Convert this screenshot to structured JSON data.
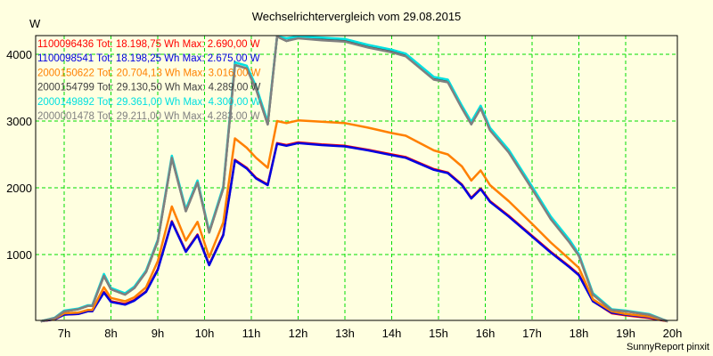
{
  "chart_data": {
    "type": "line",
    "title": "Wechselrichtervergleich vom 29.08.2015",
    "ylabel": "W",
    "xlabel": "",
    "footer": "SunnyReport pinxit",
    "xlim": [
      6.4,
      20.15
    ],
    "ylim": [
      0,
      4280
    ],
    "yticks": [
      1000,
      2000,
      3000,
      4000
    ],
    "xticks": [
      7,
      8,
      9,
      10,
      11,
      12,
      13,
      14,
      15,
      16,
      17,
      18,
      19,
      20
    ],
    "xtick_labels": [
      "7h",
      "8h",
      "9h",
      "10h",
      "11h",
      "12h",
      "13h",
      "14h",
      "15h",
      "16h",
      "17h",
      "18h",
      "19h",
      "20h"
    ],
    "grid": true,
    "grid_color": "#00dd00",
    "background": "#ffffe0",
    "legend_position": "top-left inside",
    "series": [
      {
        "name": "1100096436",
        "legend": "1100096436 Tot: 18.198,75 Wh Max: 2.690,00 W",
        "color": "#ff0000",
        "x": [
          6.5,
          6.8,
          7.0,
          7.3,
          7.5,
          7.6,
          7.85,
          8.0,
          8.3,
          8.5,
          8.75,
          9.0,
          9.3,
          9.6,
          9.85,
          10.1,
          10.4,
          10.65,
          10.9,
          11.1,
          11.35,
          11.55,
          11.75,
          12.0,
          12.5,
          13.0,
          13.5,
          14.0,
          14.3,
          14.9,
          15.2,
          15.5,
          15.7,
          15.9,
          16.1,
          16.5,
          17.0,
          17.4,
          17.8,
          18.0,
          18.3,
          18.7,
          19.0,
          19.5,
          19.9
        ],
        "values": [
          0,
          30,
          100,
          110,
          150,
          150,
          440,
          300,
          260,
          320,
          450,
          780,
          1500,
          1050,
          1300,
          850,
          1300,
          2420,
          2300,
          2150,
          2050,
          2670,
          2640,
          2680,
          2650,
          2630,
          2570,
          2500,
          2460,
          2280,
          2230,
          2050,
          1850,
          1990,
          1800,
          1580,
          1280,
          1040,
          820,
          700,
          300,
          120,
          90,
          50,
          0
        ]
      },
      {
        "name": "1100098541",
        "legend": "1100098541 Tot: 18.198,25 Wh Max: 2.675,00 W",
        "color": "#0000e0",
        "x": [
          6.5,
          6.8,
          7.0,
          7.3,
          7.5,
          7.6,
          7.85,
          8.0,
          8.3,
          8.5,
          8.75,
          9.0,
          9.3,
          9.6,
          9.85,
          10.1,
          10.4,
          10.65,
          10.9,
          11.1,
          11.35,
          11.55,
          11.75,
          12.0,
          12.5,
          13.0,
          13.5,
          14.0,
          14.3,
          14.9,
          15.2,
          15.5,
          15.7,
          15.9,
          16.1,
          16.5,
          17.0,
          17.4,
          17.8,
          18.0,
          18.3,
          18.7,
          19.0,
          19.5,
          19.9
        ],
        "values": [
          0,
          30,
          100,
          110,
          150,
          150,
          430,
          290,
          250,
          310,
          440,
          770,
          1490,
          1040,
          1290,
          840,
          1290,
          2410,
          2290,
          2140,
          2040,
          2660,
          2630,
          2670,
          2640,
          2620,
          2560,
          2490,
          2450,
          2270,
          2220,
          2040,
          1840,
          1980,
          1790,
          1570,
          1270,
          1030,
          810,
          690,
          300,
          130,
          100,
          60,
          0
        ]
      },
      {
        "name": "2000150622",
        "legend": "2000150622 Tot: 20.704,13 Wh Max: 3.016,00 W",
        "color": "#ff8000",
        "x": [
          6.5,
          6.8,
          7.0,
          7.3,
          7.5,
          7.6,
          7.85,
          8.0,
          8.3,
          8.5,
          8.75,
          9.0,
          9.3,
          9.6,
          9.85,
          10.1,
          10.4,
          10.65,
          10.9,
          11.1,
          11.35,
          11.55,
          11.75,
          12.0,
          12.5,
          13.0,
          13.5,
          14.0,
          14.3,
          14.9,
          15.2,
          15.5,
          15.7,
          15.9,
          16.1,
          16.5,
          17.0,
          17.4,
          17.8,
          18.0,
          18.3,
          18.7,
          19.0,
          19.5,
          19.9
        ],
        "values": [
          0,
          40,
          120,
          130,
          170,
          170,
          510,
          350,
          300,
          360,
          510,
          900,
          1720,
          1210,
          1490,
          960,
          1480,
          2740,
          2600,
          2450,
          2300,
          3000,
          2970,
          3010,
          2990,
          2970,
          2900,
          2820,
          2780,
          2560,
          2500,
          2320,
          2110,
          2260,
          2040,
          1800,
          1460,
          1180,
          930,
          800,
          330,
          150,
          110,
          70,
          0
        ]
      },
      {
        "name": "2000154799",
        "legend": "2000154799 Tot: 29.130,50 Wh Max: 4.289,00 W",
        "color": "#404040",
        "x": [
          6.5,
          6.8,
          7.0,
          7.3,
          7.5,
          7.6,
          7.85,
          8.0,
          8.3,
          8.5,
          8.75,
          9.0,
          9.3,
          9.6,
          9.85,
          10.1,
          10.4,
          10.65,
          10.9,
          11.1,
          11.35,
          11.55,
          11.75,
          12.0,
          12.5,
          13.0,
          13.5,
          14.0,
          14.3,
          14.9,
          15.2,
          15.5,
          15.7,
          15.9,
          16.1,
          16.5,
          17.0,
          17.4,
          17.8,
          18.0,
          18.3,
          18.7,
          19.0,
          19.5,
          19.9
        ],
        "values": [
          0,
          50,
          150,
          180,
          230,
          230,
          680,
          480,
          400,
          500,
          740,
          1200,
          2450,
          1650,
          2080,
          1330,
          1990,
          3840,
          3790,
          3480,
          2950,
          4270,
          4200,
          4250,
          4220,
          4200,
          4110,
          4040,
          3980,
          3630,
          3590,
          3200,
          2960,
          3200,
          2870,
          2540,
          1990,
          1540,
          1190,
          990,
          400,
          170,
          150,
          100,
          0
        ]
      },
      {
        "name": "2000149892",
        "legend": "2000149892 Tot: 29.361,00 Wh Max: 4.300,00 W",
        "color": "#00e0e0",
        "x": [
          6.5,
          6.8,
          7.0,
          7.3,
          7.5,
          7.6,
          7.85,
          8.0,
          8.3,
          8.5,
          8.75,
          9.0,
          9.3,
          9.6,
          9.85,
          10.1,
          10.4,
          10.65,
          10.9,
          11.1,
          11.35,
          11.55,
          11.75,
          12.0,
          12.5,
          13.0,
          13.5,
          14.0,
          14.3,
          14.9,
          15.2,
          15.5,
          15.7,
          15.9,
          16.1,
          16.5,
          17.0,
          17.4,
          17.8,
          18.0,
          18.3,
          18.7,
          19.0,
          19.5,
          19.9
        ],
        "values": [
          0,
          55,
          160,
          190,
          240,
          240,
          710,
          500,
          420,
          520,
          760,
          1220,
          2480,
          1680,
          2110,
          1350,
          2020,
          3880,
          3830,
          3520,
          2990,
          4290,
          4240,
          4280,
          4250,
          4230,
          4140,
          4070,
          4010,
          3660,
          3620,
          3230,
          2990,
          3230,
          2900,
          2570,
          2020,
          1570,
          1220,
          1010,
          420,
          180,
          160,
          110,
          0
        ]
      },
      {
        "name": "2000001478",
        "legend": "2000001478 Tot: 29.211,00 Wh Max: 4.283,00 W",
        "color": "#808080",
        "x": [
          6.5,
          6.8,
          7.0,
          7.3,
          7.5,
          7.6,
          7.85,
          8.0,
          8.3,
          8.5,
          8.75,
          9.0,
          9.3,
          9.6,
          9.85,
          10.1,
          10.4,
          10.65,
          10.9,
          11.1,
          11.35,
          11.55,
          11.75,
          12.0,
          12.5,
          13.0,
          13.5,
          14.0,
          14.3,
          14.9,
          15.2,
          15.5,
          15.7,
          15.9,
          16.1,
          16.5,
          17.0,
          17.4,
          17.8,
          18.0,
          18.3,
          18.7,
          19.0,
          19.5,
          19.9
        ],
        "values": [
          0,
          50,
          150,
          180,
          230,
          230,
          680,
          480,
          400,
          500,
          740,
          1200,
          2450,
          1650,
          2080,
          1330,
          1990,
          3840,
          3790,
          3480,
          2950,
          4270,
          4200,
          4240,
          4210,
          4190,
          4100,
          4030,
          3970,
          3620,
          3580,
          3190,
          2950,
          3190,
          2860,
          2530,
          1980,
          1530,
          1180,
          980,
          400,
          170,
          150,
          100,
          0
        ]
      }
    ]
  }
}
